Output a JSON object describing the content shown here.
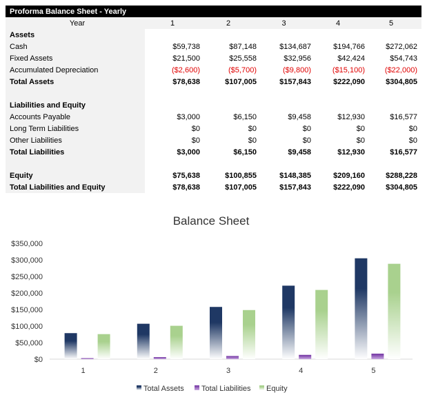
{
  "sheet": {
    "title": "Proforma Balance Sheet - Yearly",
    "year_label": "Year",
    "years": [
      "1",
      "2",
      "3",
      "4",
      "5"
    ],
    "rows": [
      {
        "label": "Assets",
        "bold": true,
        "values": []
      },
      {
        "label": "Cash",
        "values": [
          "$59,738",
          "$87,148",
          "$134,687",
          "$194,766",
          "$272,062"
        ]
      },
      {
        "label": "Fixed Assets",
        "values": [
          "$21,500",
          "$25,558",
          "$32,956",
          "$42,424",
          "$54,743"
        ]
      },
      {
        "label": "Accumulated Depreciation",
        "negative": true,
        "values": [
          "($2,600)",
          "($5,700)",
          "($9,800)",
          "($15,100)",
          "($22,000)"
        ]
      },
      {
        "label": "Total Assets",
        "bold": true,
        "values": [
          "$78,638",
          "$107,005",
          "$157,843",
          "$222,090",
          "$304,805"
        ]
      },
      {
        "label": "",
        "values": []
      },
      {
        "label": "Liabilities and Equity",
        "bold": true,
        "values": []
      },
      {
        "label": "Accounts Payable",
        "values": [
          "$3,000",
          "$6,150",
          "$9,458",
          "$12,930",
          "$16,577"
        ]
      },
      {
        "label": "Long Term Liabilities",
        "values": [
          "$0",
          "$0",
          "$0",
          "$0",
          "$0"
        ]
      },
      {
        "label": "Other Liabilities",
        "values": [
          "$0",
          "$0",
          "$0",
          "$0",
          "$0"
        ]
      },
      {
        "label": "Total Liabilities",
        "bold": true,
        "values": [
          "$3,000",
          "$6,150",
          "$9,458",
          "$12,930",
          "$16,577"
        ]
      },
      {
        "label": "",
        "values": []
      },
      {
        "label": "Equity",
        "bold": true,
        "values": [
          "$75,638",
          "$100,855",
          "$148,385",
          "$209,160",
          "$288,228"
        ]
      },
      {
        "label": "Total Liabilities and Equity",
        "bold": true,
        "values": [
          "$78,638",
          "$107,005",
          "$157,843",
          "$222,090",
          "$304,805"
        ]
      }
    ],
    "negative_color": "#e00000"
  },
  "chart_data": {
    "type": "bar",
    "title": "Balance Sheet",
    "categories": [
      "1",
      "2",
      "3",
      "4",
      "5"
    ],
    "series": [
      {
        "name": "Total Assets",
        "values": [
          78638,
          107005,
          157843,
          222090,
          304805
        ],
        "color": "#1f3864"
      },
      {
        "name": "Total Liabilities",
        "values": [
          3000,
          6150,
          9458,
          12930,
          16577
        ],
        "color": "#7030a0"
      },
      {
        "name": "Equity",
        "values": [
          75638,
          100855,
          148385,
          209160,
          288228
        ],
        "color": "#a9d18e"
      }
    ],
    "ylim": [
      0,
      350000
    ],
    "yticks": [
      "$0",
      "$50,000",
      "$100,000",
      "$150,000",
      "$200,000",
      "$250,000",
      "$300,000",
      "$350,000"
    ],
    "grid": false,
    "legend": "bottom"
  }
}
